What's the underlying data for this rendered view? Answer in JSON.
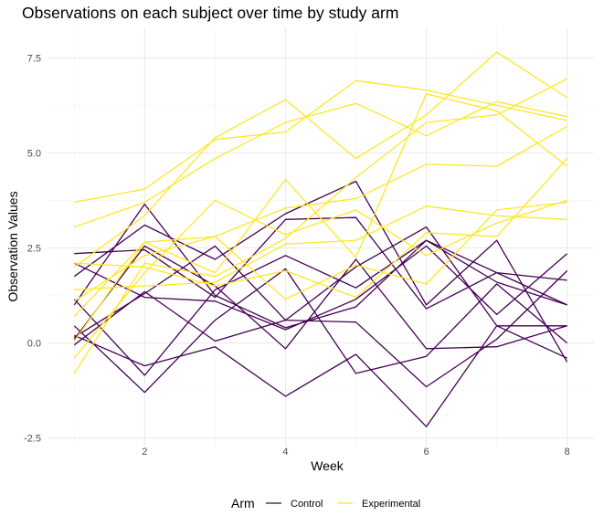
{
  "chart_data": {
    "type": "line",
    "title": "Observations on each subject over time by study arm",
    "xlabel": "Week",
    "ylabel": "Observation Values",
    "xlim": [
      1,
      8
    ],
    "ylim": [
      -2.7,
      8.3
    ],
    "x_ticks": [
      2,
      4,
      6,
      8
    ],
    "y_ticks": [
      -2.5,
      0.0,
      2.5,
      5.0,
      7.5
    ],
    "y_tick_labels": [
      "-2.5",
      "0.0",
      "2.5",
      "5.0",
      "7.5"
    ],
    "grid": true,
    "legend_position": "bottom",
    "legend_title": "Arm",
    "groups": [
      {
        "name": "Control",
        "color": "#440154"
      },
      {
        "name": "Experimental",
        "color": "#FDE725"
      }
    ],
    "x": [
      1,
      2,
      3,
      4,
      5,
      6,
      7,
      8
    ],
    "series": [
      {
        "group": "Control",
        "values": [
          0.2,
          -0.6,
          -0.1,
          -1.4,
          -0.3,
          -2.2,
          0.45,
          0.45
        ]
      },
      {
        "group": "Control",
        "values": [
          1.15,
          -0.85,
          1.4,
          2.3,
          1.45,
          2.7,
          1.85,
          1.65
        ]
      },
      {
        "group": "Control",
        "values": [
          2.35,
          2.45,
          1.2,
          3.25,
          3.3,
          0.9,
          1.85,
          1.0
        ]
      },
      {
        "group": "Control",
        "values": [
          1.75,
          3.1,
          2.2,
          3.4,
          4.25,
          1.0,
          2.7,
          -0.5
        ]
      },
      {
        "group": "Control",
        "values": [
          0.45,
          -1.3,
          0.6,
          1.95,
          -0.8,
          -0.35,
          1.55,
          0.0
        ]
      },
      {
        "group": "Control",
        "values": [
          2.1,
          1.2,
          1.1,
          0.35,
          1.15,
          2.55,
          0.75,
          2.35
        ]
      },
      {
        "group": "Control",
        "values": [
          -0.05,
          1.35,
          0.05,
          0.6,
          2.0,
          3.05,
          0.45,
          -0.4
        ]
      },
      {
        "group": "Control",
        "values": [
          1.0,
          3.65,
          1.25,
          0.4,
          0.95,
          2.7,
          1.6,
          1.0
        ]
      },
      {
        "group": "Control",
        "values": [
          0.15,
          1.3,
          2.55,
          0.6,
          0.55,
          -1.15,
          0.1,
          1.9
        ]
      },
      {
        "group": "Control",
        "values": [
          0.1,
          2.55,
          1.5,
          -0.15,
          2.2,
          -0.15,
          -0.1,
          0.45
        ]
      },
      {
        "group": "Experimental",
        "values": [
          3.7,
          4.05,
          5.35,
          5.55,
          6.9,
          6.65,
          6.25,
          5.85
        ]
      },
      {
        "group": "Experimental",
        "values": [
          3.05,
          3.7,
          4.85,
          5.8,
          6.3,
          5.45,
          6.35,
          5.95
        ]
      },
      {
        "group": "Experimental",
        "values": [
          2.0,
          3.35,
          5.4,
          6.4,
          4.85,
          6.0,
          7.65,
          6.45
        ]
      },
      {
        "group": "Experimental",
        "values": [
          0.7,
          2.65,
          1.85,
          4.3,
          2.25,
          6.55,
          6.1,
          4.65
        ]
      },
      {
        "group": "Experimental",
        "values": [
          1.1,
          2.3,
          2.8,
          3.55,
          3.8,
          4.7,
          4.65,
          5.7
        ]
      },
      {
        "group": "Experimental",
        "values": [
          -0.4,
          1.85,
          3.75,
          2.85,
          3.5,
          2.3,
          3.15,
          3.75
        ]
      },
      {
        "group": "Experimental",
        "values": [
          -0.8,
          2.1,
          1.75,
          2.75,
          4.35,
          5.8,
          6.0,
          6.95
        ]
      },
      {
        "group": "Experimental",
        "values": [
          1.4,
          1.5,
          1.6,
          2.6,
          2.7,
          3.6,
          3.35,
          3.25
        ]
      },
      {
        "group": "Experimental",
        "values": [
          0.05,
          2.65,
          2.8,
          1.15,
          2.05,
          1.55,
          3.5,
          3.7
        ]
      },
      {
        "group": "Experimental",
        "values": [
          2.1,
          2.0,
          1.5,
          1.9,
          1.2,
          2.9,
          2.8,
          4.85
        ]
      }
    ]
  }
}
